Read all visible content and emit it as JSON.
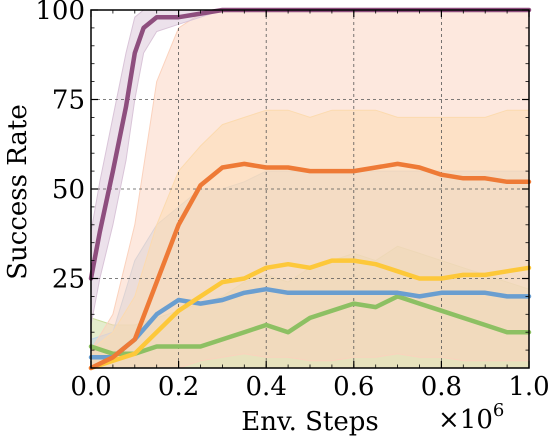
{
  "chart_data": {
    "type": "line",
    "xlabel": "Env. Steps",
    "ylabel": "Success Rate",
    "x_multiplier_label": "×10",
    "x_multiplier_exp": "6",
    "xlim": [
      0,
      1.0
    ],
    "ylim": [
      0,
      100
    ],
    "x_ticks": [
      0.0,
      0.2,
      0.4,
      0.6,
      0.8,
      1.0
    ],
    "x_tick_labels": [
      "0.0",
      "0.2",
      "0.4",
      "0.6",
      "0.8",
      "1.0"
    ],
    "y_ticks": [
      25,
      50,
      75,
      100
    ],
    "y_tick_labels": [
      "25",
      "50",
      "75",
      "100"
    ],
    "grid": true,
    "legend": "none",
    "series": [
      {
        "color": "#c9dc9c",
        "line_color": "#8dc063",
        "x": [
          0.0,
          0.05,
          0.1,
          0.15,
          0.2,
          0.25,
          0.3,
          0.35,
          0.4,
          0.45,
          0.5,
          0.55,
          0.6,
          0.65,
          0.7,
          0.75,
          0.8,
          0.85,
          0.9,
          0.95,
          1.0
        ],
        "y": [
          6,
          4,
          4,
          6,
          6,
          6,
          8,
          10,
          12,
          10,
          14,
          16,
          18,
          17,
          20,
          18,
          16,
          14,
          12,
          10,
          10
        ],
        "upper": [
          14,
          12,
          12,
          14,
          16,
          18,
          20,
          24,
          26,
          24,
          28,
          30,
          32,
          30,
          34,
          32,
          30,
          28,
          26,
          24,
          22
        ],
        "lower": [
          0,
          0,
          0,
          0,
          0,
          0,
          0,
          0,
          0,
          0,
          0,
          0,
          0,
          0,
          0,
          0,
          0,
          0,
          0,
          0,
          0
        ]
      },
      {
        "color": "#bcd4ea",
        "line_color": "#6a9ed0",
        "x": [
          0.0,
          0.05,
          0.1,
          0.15,
          0.2,
          0.25,
          0.3,
          0.35,
          0.4,
          0.45,
          0.5,
          0.55,
          0.6,
          0.65,
          0.7,
          0.75,
          0.8,
          0.85,
          0.9,
          0.95,
          1.0
        ],
        "y": [
          3,
          3,
          8,
          15,
          19,
          18,
          19,
          21,
          22,
          21,
          21,
          21,
          21,
          21,
          21,
          20,
          21,
          21,
          21,
          20,
          20
        ],
        "upper": [
          8,
          10,
          30,
          40,
          45,
          50,
          50,
          52,
          55,
          55,
          55,
          55,
          55,
          55,
          55,
          55,
          55,
          55,
          55,
          55,
          55
        ],
        "lower": [
          0,
          0,
          0,
          0,
          0,
          0,
          0,
          0,
          0,
          0,
          0,
          0,
          0,
          0,
          0,
          0,
          0,
          0,
          0,
          0,
          0
        ]
      },
      {
        "color": "#fde3a0",
        "line_color": "#fdc83a",
        "x": [
          0.0,
          0.05,
          0.1,
          0.15,
          0.2,
          0.25,
          0.3,
          0.35,
          0.4,
          0.45,
          0.5,
          0.55,
          0.6,
          0.65,
          0.7,
          0.75,
          0.8,
          0.85,
          0.9,
          0.95,
          1.0
        ],
        "y": [
          0,
          2,
          4,
          10,
          16,
          20,
          24,
          25,
          28,
          29,
          28,
          30,
          30,
          29,
          27,
          25,
          25,
          26,
          26,
          27,
          28
        ],
        "upper": [
          5,
          10,
          20,
          40,
          55,
          62,
          68,
          70,
          72,
          72,
          70,
          72,
          72,
          72,
          70,
          70,
          70,
          70,
          70,
          72,
          72
        ],
        "lower": [
          0,
          0,
          0,
          0,
          0,
          0,
          0,
          0,
          0,
          0,
          0,
          0,
          0,
          0,
          0,
          0,
          0,
          0,
          0,
          0,
          0
        ]
      },
      {
        "color": "#fbd2bd",
        "line_color": "#ee7a36",
        "x": [
          0.0,
          0.05,
          0.1,
          0.15,
          0.2,
          0.25,
          0.3,
          0.35,
          0.4,
          0.45,
          0.5,
          0.55,
          0.6,
          0.65,
          0.7,
          0.75,
          0.8,
          0.85,
          0.9,
          0.95,
          1.0
        ],
        "y": [
          0,
          3,
          8,
          24,
          40,
          51,
          56,
          57,
          56,
          56,
          55,
          55,
          55,
          56,
          57,
          56,
          54,
          53,
          53,
          52,
          52
        ],
        "upper": [
          5,
          15,
          40,
          80,
          95,
          99,
          100,
          100,
          100,
          100,
          100,
          100,
          100,
          100,
          100,
          100,
          100,
          100,
          100,
          100,
          100
        ],
        "lower": [
          0,
          0,
          0,
          0,
          0,
          2,
          3,
          4,
          3,
          3,
          2,
          2,
          3,
          3,
          4,
          3,
          3,
          2,
          2,
          2,
          2
        ]
      },
      {
        "color": "#d9c4d8",
        "line_color": "#8e4e7e",
        "x": [
          0.0,
          0.02,
          0.05,
          0.08,
          0.1,
          0.12,
          0.15,
          0.2,
          0.25,
          0.3,
          0.35,
          0.4,
          0.5,
          0.6,
          0.7,
          0.8,
          0.9,
          1.0
        ],
        "y": [
          25,
          38,
          55,
          73,
          88,
          95,
          98,
          98,
          99,
          100,
          100,
          100,
          100,
          100,
          100,
          100,
          100,
          100
        ],
        "upper": [
          38,
          52,
          70,
          88,
          98,
          100,
          100,
          100,
          100,
          100,
          100,
          100,
          100,
          100,
          100,
          100,
          100,
          100
        ],
        "lower": [
          12,
          25,
          40,
          58,
          75,
          88,
          94,
          96,
          98,
          100,
          100,
          100,
          100,
          100,
          100,
          100,
          100,
          100
        ]
      }
    ]
  }
}
